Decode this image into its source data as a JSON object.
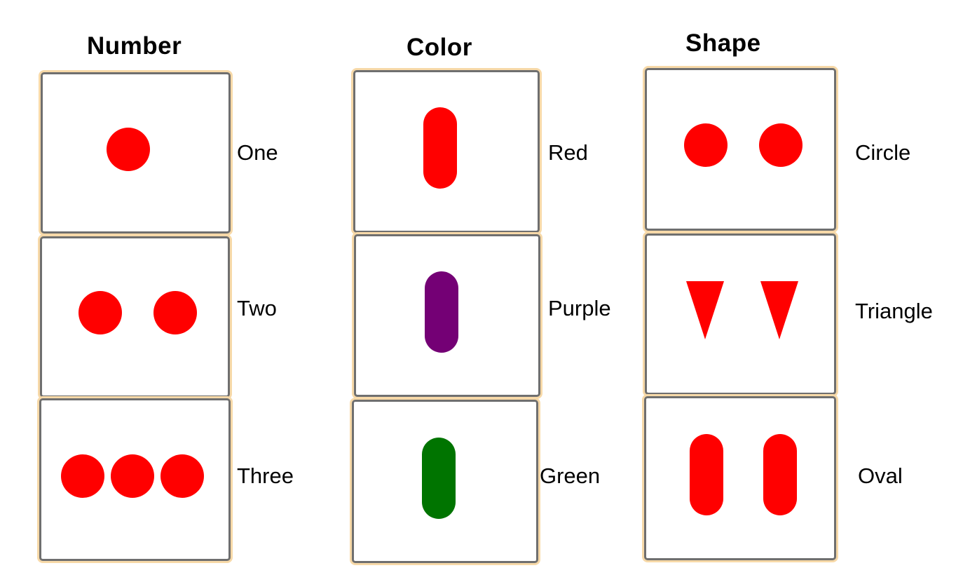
{
  "columns": {
    "number": {
      "title": "Number",
      "cards": [
        {
          "label": "One",
          "count": 1,
          "shape": "circle",
          "color": "#ff0000"
        },
        {
          "label": "Two",
          "count": 2,
          "shape": "circle",
          "color": "#ff0000"
        },
        {
          "label": "Three",
          "count": 3,
          "shape": "circle",
          "color": "#ff0000"
        }
      ]
    },
    "color": {
      "title": "Color",
      "cards": [
        {
          "label": "Red",
          "count": 1,
          "shape": "oval",
          "color": "#ff0000"
        },
        {
          "label": "Purple",
          "count": 1,
          "shape": "oval",
          "color": "#740075"
        },
        {
          "label": "Green",
          "count": 1,
          "shape": "oval",
          "color": "#007400"
        }
      ]
    },
    "shape": {
      "title": "Shape",
      "cards": [
        {
          "label": "Circle",
          "count": 2,
          "shape": "circle",
          "color": "#ff0000"
        },
        {
          "label": "Triangle",
          "count": 2,
          "shape": "triangle",
          "color": "#ff0000"
        },
        {
          "label": "Oval",
          "count": 2,
          "shape": "oval",
          "color": "#ff0000"
        }
      ]
    }
  }
}
